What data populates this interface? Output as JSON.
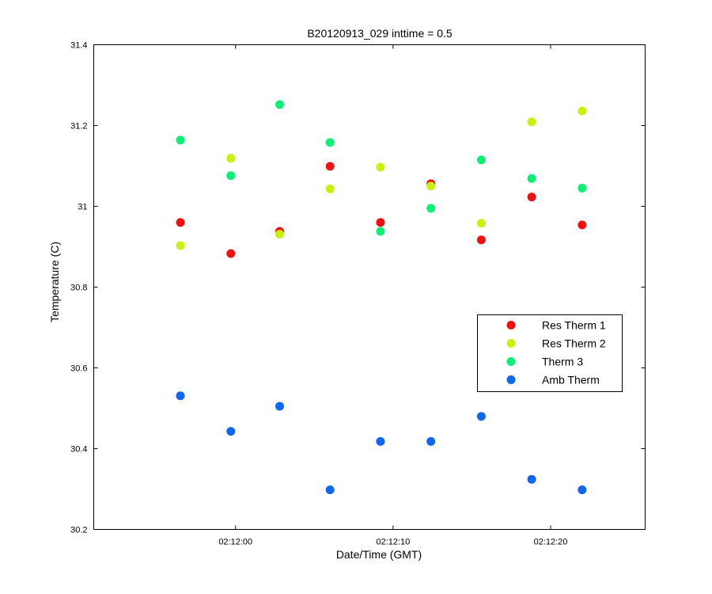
{
  "chart_data": {
    "type": "scatter",
    "title": "B20120913_029 inttime = 0.5",
    "xlabel": "Date/Time (GMT)",
    "ylabel": "Temperature (C)",
    "x_axis_type": "time",
    "xlim": [
      "02:11:51",
      "02:12:26"
    ],
    "ylim": [
      30.2,
      31.4
    ],
    "xticks": [
      "02:12:00",
      "02:12:10",
      "02:12:20"
    ],
    "yticks": [
      "30.2",
      "30.4",
      "30.6",
      "30.8",
      "31",
      "31.2",
      "31.4"
    ],
    "grid": false,
    "legend_position": "lower-right",
    "series": [
      {
        "name": "Res Therm 1",
        "color": "#ee1111",
        "points": [
          {
            "x": "02:11:56.5",
            "y": 30.96
          },
          {
            "x": "02:11:59.7",
            "y": 30.883
          },
          {
            "x": "02:12:02.8",
            "y": 30.938
          },
          {
            "x": "02:12:06.0",
            "y": 31.099
          },
          {
            "x": "02:12:09.2",
            "y": 30.96
          },
          {
            "x": "02:12:12.4",
            "y": 31.056
          },
          {
            "x": "02:12:15.6",
            "y": 30.917
          },
          {
            "x": "02:12:18.8",
            "y": 31.023
          },
          {
            "x": "02:12:22.0",
            "y": 30.954
          }
        ]
      },
      {
        "name": "Res Therm 2",
        "color": "#ccee11",
        "points": [
          {
            "x": "02:11:56.5",
            "y": 30.903
          },
          {
            "x": "02:11:59.7",
            "y": 31.119
          },
          {
            "x": "02:12:02.8",
            "y": 30.931
          },
          {
            "x": "02:12:06.0",
            "y": 31.043
          },
          {
            "x": "02:12:09.2",
            "y": 31.097
          },
          {
            "x": "02:12:12.4",
            "y": 31.05
          },
          {
            "x": "02:12:15.6",
            "y": 30.958
          },
          {
            "x": "02:12:18.8",
            "y": 31.209
          },
          {
            "x": "02:12:22.0",
            "y": 31.236
          }
        ]
      },
      {
        "name": "Therm 3",
        "color": "#11ee77",
        "points": [
          {
            "x": "02:11:56.5",
            "y": 31.164
          },
          {
            "x": "02:11:59.7",
            "y": 31.076
          },
          {
            "x": "02:12:02.8",
            "y": 31.252
          },
          {
            "x": "02:12:06.0",
            "y": 31.158
          },
          {
            "x": "02:12:09.2",
            "y": 30.938
          },
          {
            "x": "02:12:12.4",
            "y": 30.995
          },
          {
            "x": "02:12:15.6",
            "y": 31.115
          },
          {
            "x": "02:12:18.8",
            "y": 31.069
          },
          {
            "x": "02:12:22.0",
            "y": 31.045
          }
        ]
      },
      {
        "name": "Amb Therm",
        "color": "#1166ee",
        "points": [
          {
            "x": "02:11:56.5",
            "y": 30.531
          },
          {
            "x": "02:11:59.7",
            "y": 30.443
          },
          {
            "x": "02:12:02.8",
            "y": 30.505
          },
          {
            "x": "02:12:06.0",
            "y": 30.298
          },
          {
            "x": "02:12:09.2",
            "y": 30.418
          },
          {
            "x": "02:12:12.4",
            "y": 30.418
          },
          {
            "x": "02:12:15.6",
            "y": 30.48
          },
          {
            "x": "02:12:18.8",
            "y": 30.324
          },
          {
            "x": "02:12:22.0",
            "y": 30.298
          }
        ]
      }
    ]
  }
}
